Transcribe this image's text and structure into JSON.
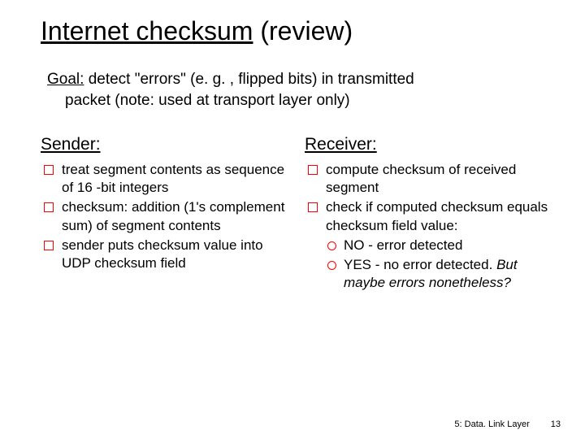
{
  "title": {
    "main": "Internet checksum",
    "sub": "(review)"
  },
  "goal": {
    "label": "Goal:",
    "line1": " detect \"errors\" (e. g. , flipped bits) in transmitted",
    "line2": "packet (note: used at transport layer only)"
  },
  "sender": {
    "heading": "Sender:",
    "items": [
      "treat segment contents as sequence of 16 -bit integers",
      "checksum: addition (1's complement sum) of segment contents",
      "sender puts checksum value into UDP checksum field"
    ]
  },
  "receiver": {
    "heading": "Receiver:",
    "items": [
      "compute checksum of received segment",
      "check if computed checksum equals checksum field value:"
    ],
    "subitems": [
      "NO - error detected",
      "YES - no error detected."
    ],
    "trailing": "But maybe errors nonetheless?"
  },
  "footer": {
    "chapter": "5: Data. Link Layer",
    "page": "13"
  },
  "colors": {
    "bullet_border": "#ff0000",
    "text": "#000000",
    "background": "#ffffff"
  }
}
